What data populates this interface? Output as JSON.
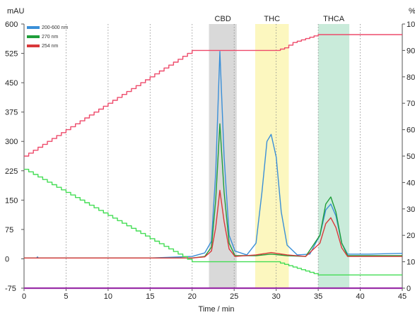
{
  "chart_data": {
    "type": "line",
    "xlabel": "Time / min",
    "ylabel_left": "mAU",
    "ylabel_right": "%",
    "xlim": [
      0,
      45
    ],
    "ylim_left": [
      -75,
      600
    ],
    "ylim_right": [
      0,
      100
    ],
    "x_ticks": [
      "0",
      "5",
      "10",
      "15",
      "20",
      "25",
      "30",
      "35",
      "40",
      "45"
    ],
    "y_left_ticks": [
      "600",
      "525",
      "450",
      "375",
      "300",
      "225",
      "150",
      "75",
      "0",
      "-75"
    ],
    "y_right_ticks": [
      "100",
      "90",
      "80",
      "70",
      "60",
      "50",
      "40",
      "30",
      "20",
      "10",
      "0"
    ],
    "grid": "dotted vertical",
    "legend_position": "top-left",
    "regions": [
      {
        "label": "CBD",
        "x_start": 22.0,
        "x_end": 25.3,
        "color": "#d2d2d2"
      },
      {
        "label": "THC",
        "x_start": 27.5,
        "x_end": 31.5,
        "color": "#fbf6b4"
      },
      {
        "label": "THCA",
        "x_start": 35.0,
        "x_end": 38.7,
        "color": "#bfe8d4"
      }
    ],
    "series": [
      {
        "name": "200-600 nm",
        "axis": "left",
        "color": "#3a8fd8",
        "points": [
          [
            0,
            2
          ],
          [
            1.5,
            2
          ],
          [
            1.6,
            5
          ],
          [
            1.7,
            2
          ],
          [
            15,
            2
          ],
          [
            20,
            6
          ],
          [
            21.5,
            15
          ],
          [
            22.3,
            45
          ],
          [
            22.8,
            220
          ],
          [
            23.3,
            530
          ],
          [
            23.8,
            260
          ],
          [
            24.4,
            60
          ],
          [
            25.1,
            20
          ],
          [
            26.5,
            10
          ],
          [
            27.6,
            40
          ],
          [
            28.3,
            170
          ],
          [
            28.9,
            300
          ],
          [
            29.4,
            318
          ],
          [
            30.0,
            260
          ],
          [
            30.6,
            120
          ],
          [
            31.3,
            35
          ],
          [
            32.5,
            10
          ],
          [
            34.0,
            12
          ],
          [
            35.2,
            60
          ],
          [
            35.9,
            125
          ],
          [
            36.5,
            140
          ],
          [
            37.1,
            110
          ],
          [
            37.8,
            40
          ],
          [
            38.5,
            12
          ],
          [
            41,
            12
          ],
          [
            45,
            14
          ]
        ]
      },
      {
        "name": "270 nm",
        "axis": "left",
        "color": "#1f9e3a",
        "points": [
          [
            0,
            2
          ],
          [
            20,
            2
          ],
          [
            21.5,
            6
          ],
          [
            22.3,
            30
          ],
          [
            22.8,
            150
          ],
          [
            23.3,
            345
          ],
          [
            23.8,
            170
          ],
          [
            24.4,
            40
          ],
          [
            25.1,
            8
          ],
          [
            27.6,
            8
          ],
          [
            29.4,
            12
          ],
          [
            31.3,
            8
          ],
          [
            33.5,
            6
          ],
          [
            35.2,
            60
          ],
          [
            35.9,
            140
          ],
          [
            36.5,
            158
          ],
          [
            37.1,
            120
          ],
          [
            37.8,
            40
          ],
          [
            38.5,
            8
          ],
          [
            45,
            8
          ]
        ]
      },
      {
        "name": "254 nm",
        "axis": "left",
        "color": "#d9383a",
        "points": [
          [
            0,
            2
          ],
          [
            20,
            2
          ],
          [
            21.5,
            5
          ],
          [
            22.3,
            20
          ],
          [
            22.8,
            80
          ],
          [
            23.3,
            175
          ],
          [
            23.8,
            95
          ],
          [
            24.4,
            25
          ],
          [
            25.1,
            6
          ],
          [
            27.6,
            10
          ],
          [
            29.4,
            16
          ],
          [
            31.3,
            10
          ],
          [
            33.5,
            6
          ],
          [
            35.2,
            40
          ],
          [
            35.9,
            90
          ],
          [
            36.5,
            105
          ],
          [
            37.1,
            80
          ],
          [
            37.8,
            28
          ],
          [
            38.5,
            6
          ],
          [
            45,
            6
          ]
        ]
      },
      {
        "name": "",
        "axis": "right",
        "color": "#ee4b6b",
        "style": "step",
        "points": [
          [
            0,
            50
          ],
          [
            20,
            90
          ],
          [
            30,
            90
          ],
          [
            31,
            91
          ],
          [
            32,
            93
          ],
          [
            33,
            94
          ],
          [
            34,
            95
          ],
          [
            35,
            96
          ],
          [
            45,
            96
          ]
        ]
      },
      {
        "name": "",
        "axis": "right",
        "color": "#44dd55",
        "style": "step",
        "points": [
          [
            0,
            45
          ],
          [
            20,
            10
          ],
          [
            30,
            10
          ],
          [
            31,
            9
          ],
          [
            32,
            8
          ],
          [
            33,
            7
          ],
          [
            34,
            6
          ],
          [
            35,
            5
          ],
          [
            45,
            5
          ]
        ]
      },
      {
        "name": "",
        "axis": "right",
        "color": "#9a2fa8",
        "style": "flat",
        "points": [
          [
            0,
            0
          ],
          [
            45,
            0
          ]
        ]
      }
    ]
  }
}
